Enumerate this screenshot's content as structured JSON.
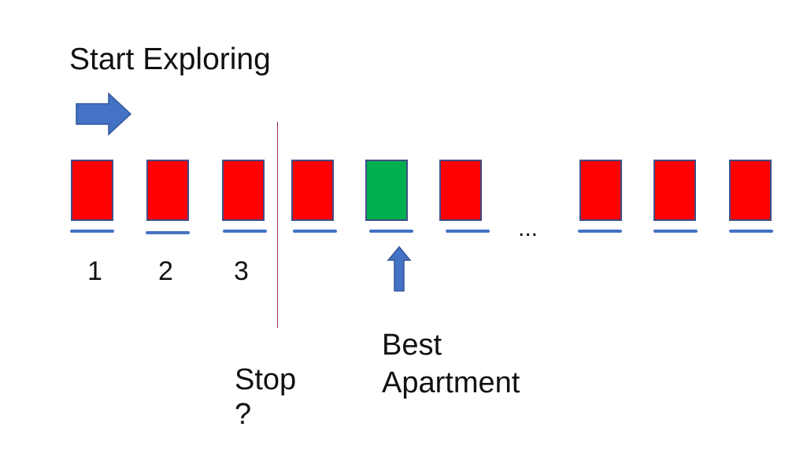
{
  "title": "Start Exploring",
  "labels": {
    "stop": "Stop\n?",
    "best": "Best\nApartment",
    "ellipsis": "..."
  },
  "numbers": [
    "1",
    "2",
    "3"
  ],
  "apartments": [
    {
      "status": "red"
    },
    {
      "status": "red"
    },
    {
      "status": "red"
    },
    {
      "status": "red"
    },
    {
      "status": "green"
    },
    {
      "status": "red"
    },
    {
      "status": "red"
    },
    {
      "status": "red"
    },
    {
      "status": "red"
    }
  ],
  "colors": {
    "red": "#ff0000",
    "green": "#00b050",
    "border": "#3f4d84",
    "arrow": "#4472c4",
    "underline": "#4472c4",
    "divider": "#a3245a",
    "text": "#111111"
  },
  "icons": {
    "start_arrow": "right-arrow-icon",
    "best_arrow": "up-arrow-icon"
  }
}
